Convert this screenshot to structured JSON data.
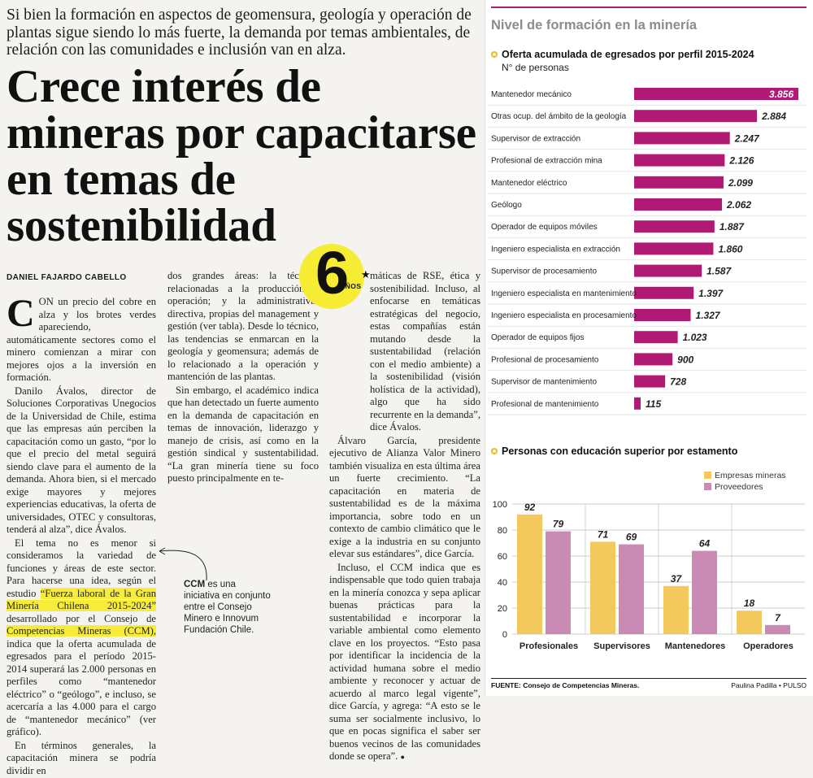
{
  "article": {
    "deck": "Si bien la formación en aspectos de geomensura, geología y operación de plantas sigue siendo lo más fuerte, la demanda por temas ambientales, de relación con las comunidades e inclusión van en alza.",
    "headline": "Crece interés de mineras por capacitarse en temas de sostenibilidad",
    "byline": "DANIEL FAJARDO CABELLO",
    "drop_cap": "C",
    "col1_p1": "ON un precio del cobre en alza y los brotes verdes apareciendo, automáticamente sectores como el minero comienzan a mirar con mejores ojos a la inversión en formación.",
    "col1_p2": "Danilo Ávalos, director de Soluciones Corporativas Unegocios de la Universidad de Chile, estima que las empresas aún perciben la capacitación como un gasto, “por lo que el precio del metal seguirá siendo clave para el aumento de la demanda. Ahora bien, si el mercado exige mayores y mejores experiencias educativas, la oferta de universidades, OTEC y consultoras, tenderá al alza”, dice Ávalos.",
    "col1_p3a": "El tema no es menor si consideramos la variedad de funciones y áreas de este sector. Para hacerse una idea, según el estudio ",
    "col1_p3_hl": "“Fuerza laboral de la Gran Minería Chilena 2015-2024”",
    "col1_p3b": " desarrollado por el Consejo de ",
    "col1_p3_hl2": "Competencias Mineras (CCM),",
    "col1_p3c": " indica que la oferta acumulada de egresados para el período 2015-2014 superará las 2.000 personas en perfiles como “mantenedor eléctrico” o “geólogo”, e incluso, se acercaría a las 4.000 para el cargo de “mantenedor mecánico” (ver gráfico).",
    "col1_p4": "En términos generales, la capacitación minera se podría dividir en",
    "col2_p1": "dos grandes áreas: la técnica, relacionadas a la producción y operación; y la administrativa-directiva, propias del management y gestión (ver tabla). Desde lo técnico, las tendencias se enmarcan en la geología y geomensura; además de lo relacionado a la operación y mantención de las plantas.",
    "col2_p2": "Sin embargo, el académico indica que han detectado un fuerte aumento en la demanda de capacitación en temas de innovación, liderazgo y manejo de crisis, así como en la gestión sindical y sustentabilidad. “La gran minería tiene su foco puesto principalmente en te-",
    "col3_p1": "máticas de RSE, ética y sostenibilidad. Incluso, al enfocarse en temáticas estratégicas del negocio, estas compañías están mutando desde la sustentabilidad (relación con el medio ambiente) a la sostenibilidad (visión holística de la actividad), algo que ha sido recurrente en la demanda”, dice Ávalos.",
    "col3_p2": "Álvaro García, presidente ejecutivo de Alianza Valor Minero también visualiza en esta última área un fuerte crecimiento. “La capacitación en materia de sustentabilidad es de la máxima importancia, sobre todo en un contexto de cambio climático que le exige a la industria en su conjunto elevar sus estándares”, dice García.",
    "col3_p3": "Incluso, el CCM indica que es indispensable que todo quien trabaja en la minería conozca y sepa aplicar buenas prácticas para la sustentabilidad e incorporar la variable ambiental como elemento clave en los proyectos. “Esto pasa por identificar la incidencia de la actividad humana sobre el medio ambiente y reconocer y actuar de acuerdo al marco legal vigente”, dice García, y agrega: “A esto se le suma ser socialmente inclusivo, lo que en pocas significa el saber ser buenos vecinos de las comunidades donde se opera”.",
    "end_mark": "●",
    "callout_bold": "CCM",
    "callout_text": " es una iniciativa en conjunto entre el Consejo Minero e Innovum Fundación Chile.",
    "badge_number": "6",
    "badge_text": "AÑOS",
    "badge_star": "★"
  },
  "panel": {
    "title": "Nivel de formación en la minería",
    "chart1_title": "Oferta acumulada de egresados por perfil 2015-2024",
    "chart1_subtitle": "N° de personas",
    "chart2_title": "Personas con educación superior por estamento",
    "source": "FUENTE: Consejo de Competencias Mineras.",
    "credit": "Paulina Padilla • PULSO"
  },
  "colors": {
    "magenta": "#b01a74",
    "yellow": "#f3c95e",
    "pink": "#c98bb4",
    "badge": "#f6ec33"
  },
  "chart_data": [
    {
      "type": "bar",
      "orientation": "horizontal",
      "title": "Oferta acumulada de egresados por perfil 2015-2024",
      "ylabel": "N° de personas",
      "categories": [
        "Mantenedor mecánico",
        "Otras ocup. del ámbito de la geología",
        "Supervisor de extracción",
        "Profesional de extracción mina",
        "Mantenedor eléctrico",
        "Geólogo",
        "Operador de equipos móviles",
        "Ingeniero especialista en extracción",
        "Supervisor de procesamiento",
        "Ingeniero especialista en mantenimiento",
        "Ingeniero especialista en procesamiento",
        "Operador de equipos fijos",
        "Profesional de procesamiento",
        "Supervisor de mantenimiento",
        "Profesional de mantenimiento"
      ],
      "values": [
        3856,
        2884,
        2247,
        2126,
        2099,
        2062,
        1887,
        1860,
        1587,
        1397,
        1327,
        1023,
        900,
        728,
        115
      ],
      "labels": [
        "3.856",
        "2.884",
        "2.247",
        "2.126",
        "2.099",
        "2.062",
        "1.887",
        "1.860",
        "1.587",
        "1.397",
        "1.327",
        "1.023",
        "900",
        "728",
        "115"
      ],
      "xlim": [
        0,
        3856
      ]
    },
    {
      "type": "bar",
      "title": "Personas con educación superior por estamento",
      "categories": [
        "Profesionales",
        "Supervisores",
        "Mantenedores",
        "Operadores"
      ],
      "series": [
        {
          "name": "Empresas mineras",
          "values": [
            92,
            71,
            37,
            18
          ]
        },
        {
          "name": "Proveedores",
          "values": [
            79,
            69,
            64,
            7
          ]
        }
      ],
      "ylim": [
        0,
        100
      ],
      "yticks": [
        "0",
        "20",
        "40",
        "60",
        "80",
        "100"
      ],
      "legend": "top-right"
    }
  ]
}
